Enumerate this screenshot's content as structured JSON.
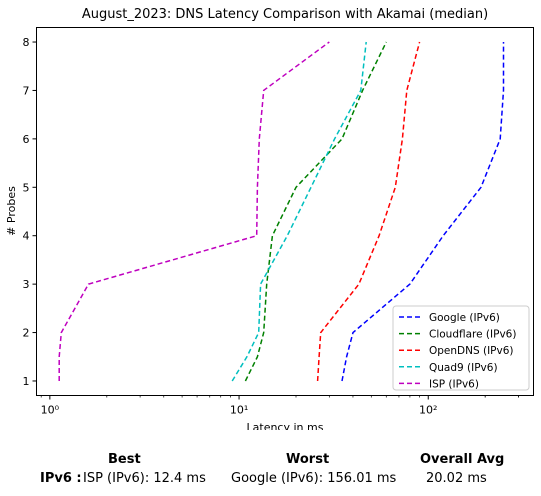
{
  "chart_data": {
    "type": "line",
    "title": "August_2023: DNS Latency Comparison with Akamai (median)",
    "xlabel": "Latency in ms",
    "ylabel": "# Probes",
    "x_scale": "log",
    "xlim": [
      0.85,
      360
    ],
    "ylim": [
      0.7,
      8.3
    ],
    "x_ticks": [
      1,
      10,
      100
    ],
    "x_tick_labels": [
      "10⁰",
      "10¹",
      "10²"
    ],
    "y_ticks": [
      1,
      2,
      3,
      4,
      5,
      6,
      7,
      8
    ],
    "grid": false,
    "legend_position": "lower right",
    "series": [
      {
        "name": "Google (IPv6)",
        "color": "#0000ff",
        "x": [
          35,
          37,
          40,
          80,
          120,
          190,
          240,
          250,
          250
        ],
        "y": [
          1,
          1.5,
          2,
          3,
          4,
          5,
          6,
          7,
          8
        ]
      },
      {
        "name": "Cloudflare (IPv6)",
        "color": "#008000",
        "x": [
          10.8,
          12.5,
          13.5,
          14,
          15,
          20,
          35,
          45,
          60
        ],
        "y": [
          1,
          1.5,
          2,
          3,
          4,
          5,
          6,
          7,
          8
        ]
      },
      {
        "name": "OpenDNS (IPv6)",
        "color": "#ff0000",
        "x": [
          26,
          26.5,
          27,
          43,
          55,
          67,
          73,
          77,
          90
        ],
        "y": [
          1,
          1.5,
          2,
          3,
          4,
          5,
          6,
          7,
          8
        ]
      },
      {
        "name": "Quad9 (IPv6)",
        "color": "#00bfbf",
        "x": [
          9.2,
          11,
          12.7,
          13,
          18,
          24,
          32,
          44,
          47
        ],
        "y": [
          1,
          1.5,
          2,
          3,
          4,
          5,
          6,
          7,
          8
        ]
      },
      {
        "name": "ISP (IPv6)",
        "color": "#bf00bf",
        "x": [
          1.12,
          1.12,
          1.15,
          1.6,
          12.4,
          12.5,
          12.8,
          13.5,
          30
        ],
        "y": [
          1,
          1.5,
          2,
          3,
          4,
          5,
          6,
          7,
          8
        ]
      }
    ]
  },
  "summary": {
    "col_best": "Best",
    "col_worst": "Worst",
    "col_avg": "Overall Avg",
    "row_label": "IPv6 :",
    "best": "ISP (IPv6): 12.4 ms",
    "worst": "Google (IPv6): 156.01 ms",
    "avg": "20.02 ms"
  }
}
